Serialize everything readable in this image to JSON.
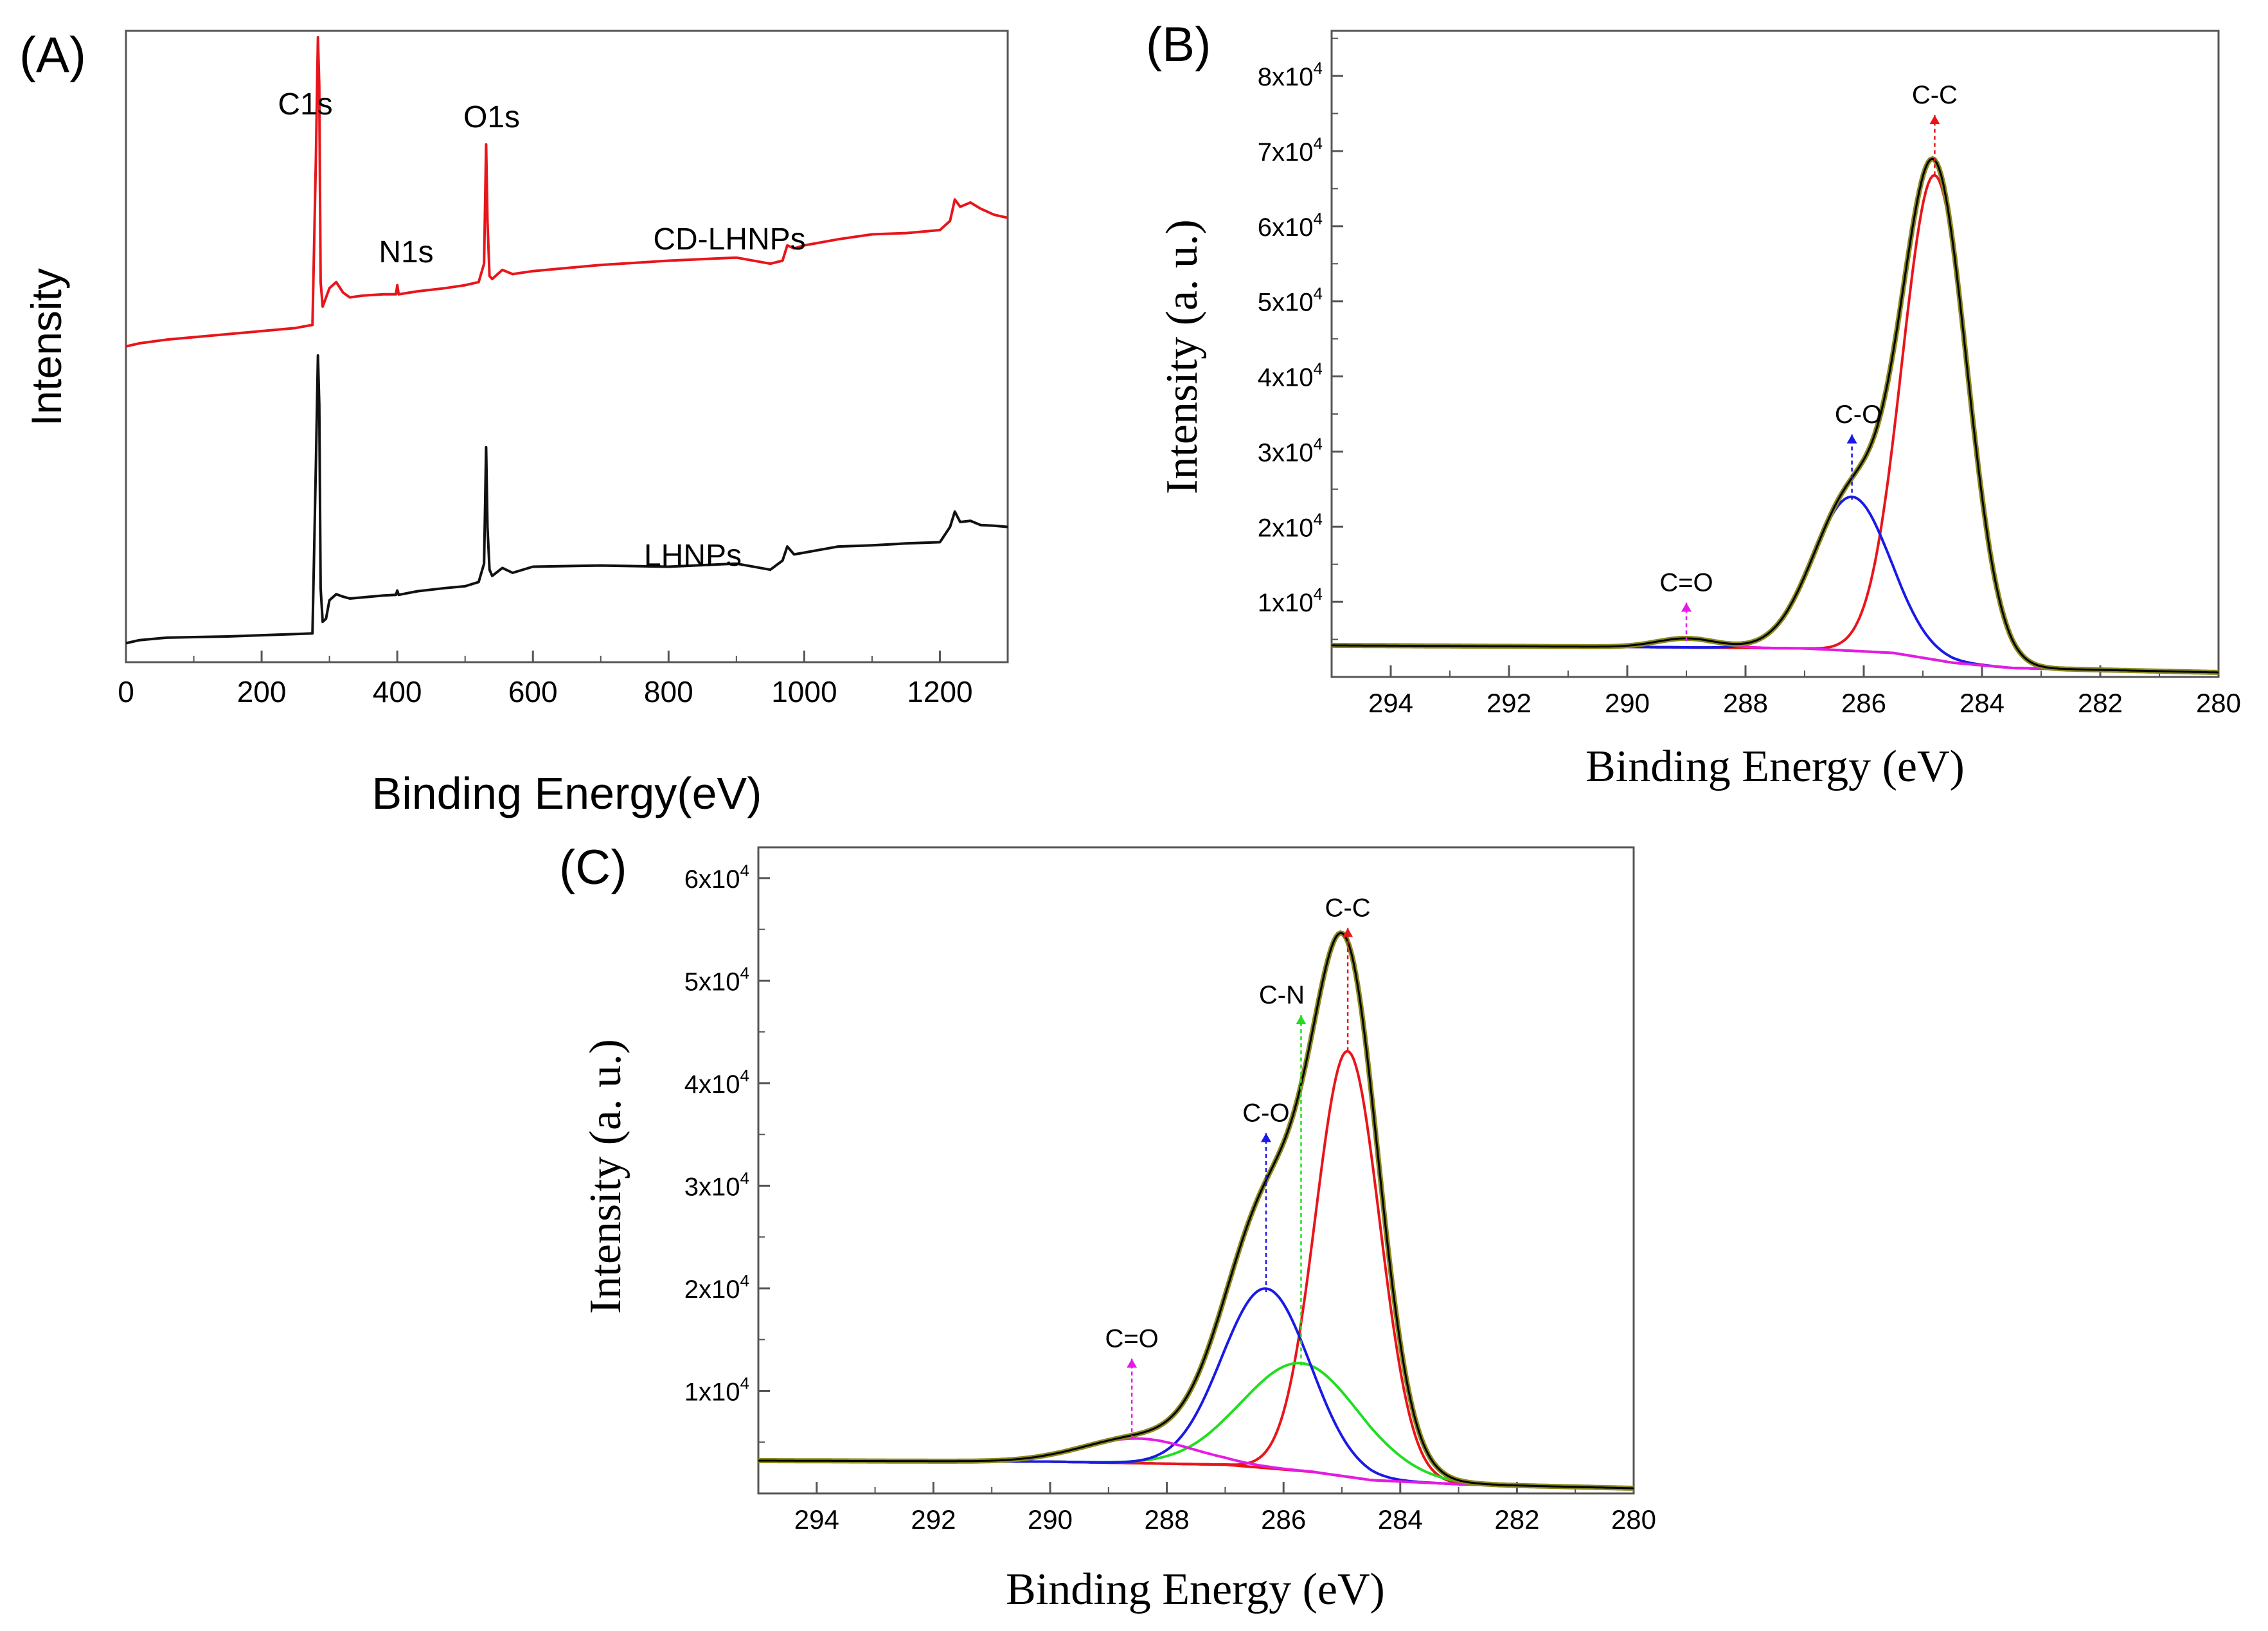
{
  "chart_data": [
    {
      "panel": "A",
      "type": "line",
      "panel_label": "(A)",
      "xlabel": "Binding Energy(eV)",
      "ylabel": "Intensity",
      "xlim": [
        0,
        1300
      ],
      "ylim": [
        0,
        100
      ],
      "xticks": [
        0,
        200,
        400,
        600,
        800,
        1000,
        1200
      ],
      "tick_labels": [
        "0",
        "200",
        "400",
        "600",
        "800",
        "1000",
        "1200"
      ],
      "series": [
        {
          "name": "CD-LHNPs",
          "color": "#e8151b",
          "x": [
            0,
            20,
            60,
            100,
            150,
            200,
            250,
            275,
            280,
            283,
            285,
            287,
            290,
            300,
            310,
            320,
            330,
            350,
            380,
            398,
            400,
            402,
            430,
            470,
            500,
            520,
            528,
            531,
            533,
            536,
            540,
            555,
            570,
            600,
            700,
            800,
            900,
            950,
            968,
            975,
            985,
            1000,
            1050,
            1100,
            1150,
            1200,
            1215,
            1222,
            1230,
            1245,
            1260,
            1280,
            1300
          ],
          "values": [
            49.5,
            50.0,
            50.6,
            51.0,
            51.5,
            52.0,
            52.5,
            53.0,
            80,
            100,
            92,
            60,
            56.0,
            59.0,
            60.0,
            58.3,
            57.5,
            57.8,
            58.0,
            58.0,
            59.5,
            58.0,
            58.5,
            59.0,
            59.5,
            60.0,
            63,
            82.5,
            70,
            61,
            60.5,
            62.0,
            61.3,
            61.8,
            62.8,
            63.5,
            64.0,
            63.0,
            63.5,
            66.0,
            65.5,
            66.0,
            67.0,
            67.8,
            68.0,
            68.5,
            70,
            73.5,
            72.3,
            73.0,
            72.0,
            71.0,
            70.5
          ]
        },
        {
          "name": "LHNPs",
          "color": "#111111",
          "x": [
            0,
            20,
            60,
            100,
            150,
            200,
            250,
            275,
            280,
            283,
            285,
            287,
            290,
            295,
            300,
            310,
            320,
            330,
            350,
            380,
            398,
            400,
            402,
            430,
            470,
            500,
            520,
            528,
            531,
            533,
            536,
            540,
            555,
            570,
            600,
            700,
            800,
            900,
            950,
            968,
            975,
            985,
            1000,
            1050,
            1100,
            1150,
            1200,
            1215,
            1222,
            1230,
            1245,
            1260,
            1280,
            1300
          ],
          "values": [
            1.0,
            1.5,
            1.9,
            2.0,
            2.1,
            2.3,
            2.5,
            2.6,
            30,
            48,
            40,
            10,
            4.5,
            5.0,
            8.0,
            9.0,
            8.6,
            8.3,
            8.5,
            8.8,
            8.9,
            9.6,
            8.9,
            9.5,
            10.0,
            10.3,
            11.0,
            14,
            33,
            20,
            13,
            12.0,
            13.3,
            12.5,
            13.5,
            13.7,
            13.5,
            14.0,
            13.0,
            14.5,
            16.8,
            15.5,
            15.8,
            16.8,
            17.0,
            17.3,
            17.5,
            20,
            22.5,
            20.8,
            21.0,
            20.3,
            20.2,
            20.0
          ]
        }
      ],
      "annotations": [
        {
          "text": "C1s",
          "x": 285
        },
        {
          "text": "N1s",
          "x": 400
        },
        {
          "text": "O1s",
          "x": 532
        },
        {
          "text": "CD-LHNPs",
          "series": "CD-LHNPs"
        },
        {
          "text": "LHNPs",
          "series": "LHNPs"
        }
      ]
    },
    {
      "panel": "B",
      "type": "line",
      "panel_label": "(B)",
      "xlabel": "Binding Energy (eV)",
      "ylabel": "Intensity (a. u.)",
      "xlim": [
        295,
        280
      ],
      "ylim": [
        0,
        86000
      ],
      "xticks": [
        294,
        292,
        290,
        288,
        286,
        284,
        282,
        280
      ],
      "tick_labels": [
        "294",
        "292",
        "290",
        "288",
        "286",
        "284",
        "282",
        "280"
      ],
      "yticks": [
        10000,
        20000,
        30000,
        40000,
        50000,
        60000,
        70000,
        80000
      ],
      "ytick_labels": [
        {
          "base": "1x10",
          "exp": "4"
        },
        {
          "base": "2x10",
          "exp": "4"
        },
        {
          "base": "3x10",
          "exp": "4"
        },
        {
          "base": "4x10",
          "exp": "4"
        },
        {
          "base": "5x10",
          "exp": "4"
        },
        {
          "base": "6x10",
          "exp": "4"
        },
        {
          "base": "7x10",
          "exp": "4"
        },
        {
          "base": "8x10",
          "exp": "4"
        }
      ],
      "background": {
        "name": "Background",
        "color": "#22dd22",
        "points": [
          [
            295,
            4200
          ],
          [
            290,
            4000
          ],
          [
            287,
            3800
          ],
          [
            285.5,
            3200
          ],
          [
            284.5,
            1900
          ],
          [
            283.5,
            1200
          ],
          [
            280,
            600
          ]
        ]
      },
      "components": [
        {
          "name": "C-C",
          "color": "#e8151b",
          "center": 284.8,
          "amplitude": 64500,
          "sigma": 0.55
        },
        {
          "name": "C-O",
          "color": "#1a1ae6",
          "center": 286.2,
          "amplitude": 20500,
          "sigma": 0.65
        },
        {
          "name": "C=O",
          "color": "#e61ae6",
          "center": 289.0,
          "amplitude": 1200,
          "sigma": 0.5
        }
      ],
      "envelope": {
        "name": "Envelope",
        "colors": [
          "#000000",
          "#8a8a1e"
        ]
      },
      "peak_labels": [
        {
          "text": "C-C",
          "x": 284.8,
          "value": 70500,
          "color": "#e8151b"
        },
        {
          "text": "C-O",
          "x": 286.2,
          "value": 28000,
          "color": "#1a1ae6"
        },
        {
          "text": "C=O",
          "x": 289.0,
          "value": 5600,
          "color": "#e61ae6"
        }
      ]
    },
    {
      "panel": "C",
      "type": "line",
      "panel_label": "(C)",
      "xlabel": "Binding Energy (eV)",
      "ylabel": "Intensity (a. u.)",
      "xlim": [
        295,
        280
      ],
      "ylim": [
        0,
        63000
      ],
      "xticks": [
        294,
        292,
        290,
        288,
        286,
        284,
        282,
        280
      ],
      "tick_labels": [
        "294",
        "292",
        "290",
        "288",
        "286",
        "284",
        "282",
        "280"
      ],
      "yticks": [
        10000,
        20000,
        30000,
        40000,
        50000,
        60000
      ],
      "ytick_labels": [
        {
          "base": "1x10",
          "exp": "4"
        },
        {
          "base": "2x10",
          "exp": "4"
        },
        {
          "base": "3x10",
          "exp": "4"
        },
        {
          "base": "4x10",
          "exp": "4"
        },
        {
          "base": "5x10",
          "exp": "4"
        },
        {
          "base": "6x10",
          "exp": "4"
        }
      ],
      "background": {
        "name": "Background",
        "color": "#e8151b",
        "points": [
          [
            295,
            3200
          ],
          [
            290,
            3100
          ],
          [
            287,
            2800
          ],
          [
            285.5,
            2100
          ],
          [
            284.5,
            1300
          ],
          [
            283,
            900
          ],
          [
            280,
            500
          ]
        ]
      },
      "components": [
        {
          "name": "C-C",
          "color": "#e8151b",
          "center": 284.9,
          "amplitude": 41500,
          "sigma": 0.55
        },
        {
          "name": "C-N",
          "color": "#22dd22",
          "center": 285.7,
          "amplitude": 10500,
          "sigma": 1.0
        },
        {
          "name": "C-O",
          "color": "#1a1ae6",
          "center": 286.3,
          "amplitude": 17500,
          "sigma": 0.75
        },
        {
          "name": "C=O",
          "color": "#e61ae6",
          "center": 288.5,
          "amplitude": 2400,
          "sigma": 0.95
        }
      ],
      "envelope": {
        "name": "Envelope",
        "colors": [
          "#000000",
          "#8a8a1e"
        ]
      },
      "peak_labels": [
        {
          "text": "C-C",
          "x": 284.9,
          "value": 52000,
          "color": "#e8151b"
        },
        {
          "text": "C-N",
          "x": 285.7,
          "value": 43500,
          "color": "#22dd22"
        },
        {
          "text": "C-O",
          "x": 286.3,
          "value": 32000,
          "color": "#1a1ae6"
        },
        {
          "text": "C=O",
          "x": 288.6,
          "value": 10000,
          "color": "#e61ae6"
        }
      ]
    }
  ]
}
